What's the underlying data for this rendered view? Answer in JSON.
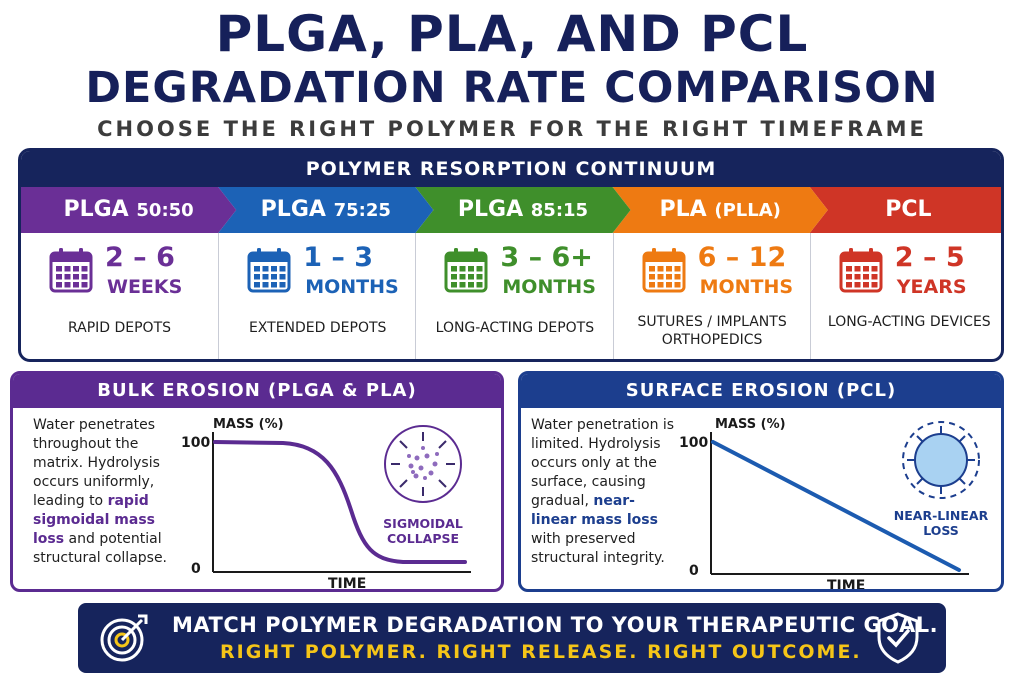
{
  "header": {
    "title_line1": "PLGA, PLA, AND PCL",
    "title_line2": "DEGRADATION RATE COMPARISON",
    "subtitle": "CHOOSE THE RIGHT POLYMER FOR THE RIGHT TIMEFRAME"
  },
  "continuum": {
    "title": "POLYMER RESORPTION CONTINUUM",
    "polymers": [
      {
        "name": "PLGA",
        "ratio": "50:50",
        "range": "2 – 6",
        "unit": "WEEKS",
        "use": "RAPID DEPOTS",
        "color": "#6a2f96"
      },
      {
        "name": "PLGA",
        "ratio": "75:25",
        "range": "1 – 3",
        "unit": "MONTHS",
        "use": "EXTENDED DEPOTS",
        "color": "#1c62b6"
      },
      {
        "name": "PLGA",
        "ratio": "85:15",
        "range": "3 – 6+",
        "unit": "MONTHS",
        "use": "LONG-ACTING DEPOTS",
        "color": "#3f8f2b"
      },
      {
        "name": "PLA",
        "ratio": "(PLLA)",
        "range": "6 – 12",
        "unit": "MONTHS",
        "use": "SUTURES / IMPLANTS ORTHOPEDICS",
        "color": "#ee7a12"
      },
      {
        "name": "PCL",
        "ratio": "",
        "range": "2 – 5",
        "unit": "YEARS",
        "use": "LONG-ACTING DEVICES",
        "color": "#cf3526"
      }
    ]
  },
  "bulk": {
    "title": "BULK EROSION (PLGA & PLA)",
    "text_before": "Water penetrates throughout the matrix. Hydrolysis occurs uniformly, leading to ",
    "text_highlight": "rapid sigmoidal mass loss",
    "text_after": " and potential structural collapse.",
    "chart_ylabel": "MASS (%)",
    "chart_xlabel": "TIME",
    "y_top": "100",
    "y_bottom": "0",
    "icon_label": "SIGMOIDAL COLLAPSE",
    "color": "#5b2b91"
  },
  "surface": {
    "title": "SURFACE EROSION (PCL)",
    "text_before": "Water penetration is limited. Hydrolysis occurs only at the surface, causing gradual, ",
    "text_highlight": "near-linear mass loss",
    "text_after": " with preserved structural integrity.",
    "chart_ylabel": "MASS (%)",
    "chart_xlabel": "TIME",
    "y_top": "100",
    "y_bottom": "0",
    "icon_label": "NEAR-LINEAR LOSS",
    "color": "#1c3e8e"
  },
  "banner": {
    "line1": "MATCH POLYMER DEGRADATION TO YOUR THERAPEUTIC GOAL.",
    "line2": "RIGHT POLYMER. RIGHT RELEASE. RIGHT OUTCOME.",
    "icons": [
      "target-icon",
      "shield-check-icon"
    ]
  }
}
